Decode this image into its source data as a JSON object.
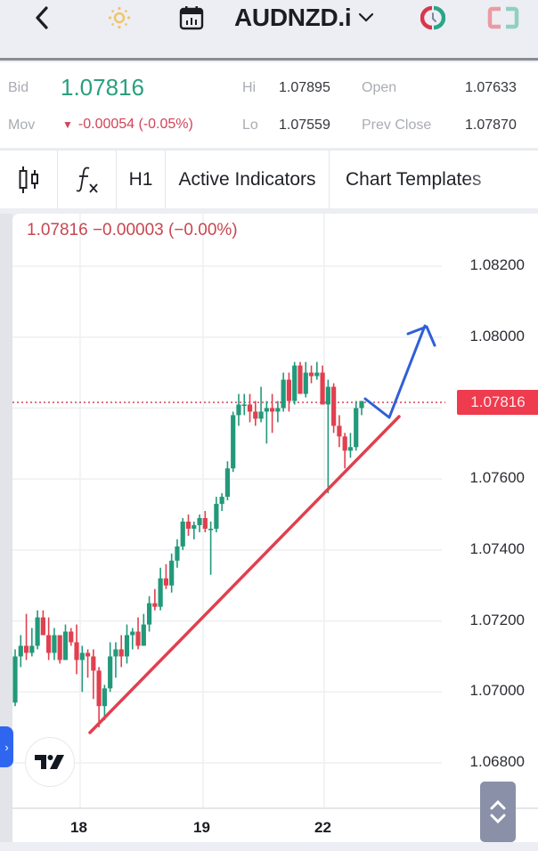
{
  "header": {
    "title": "AUDNZD.i",
    "icons": [
      "back-arrow-icon",
      "sun-theme-icon",
      "calendar-icon",
      "chevron-down-icon",
      "market-clock-icon",
      "expand-frame-icon"
    ]
  },
  "quote": {
    "bid_label": "Bid",
    "bid_value": "1.07816",
    "mov_label": "Mov",
    "mov_arrow": "▼",
    "mov_value": "-0.00054 (-0.05%)",
    "hi_label": "Hi",
    "hi_value": "1.07895",
    "lo_label": "Lo",
    "lo_value": "1.07559",
    "open_label": "Open",
    "open_value": "1.07633",
    "prev_close_label": "Prev Close",
    "prev_close_value": "1.07870",
    "colors": {
      "up": "#2a9f7d",
      "down": "#d2435a"
    }
  },
  "toolbar": {
    "chart_type_icon": "candlestick-icon",
    "indicator_icon": "fx-icon",
    "timeframe": "H1",
    "active_indicators": "Active Indicators",
    "chart_templates": "Chart Templates"
  },
  "chart": {
    "legend": "1.07816  −0.00003 (−0.00%)",
    "current_price": "1.07816",
    "y_labels": [
      "1.08200",
      "1.08000",
      "1.07600",
      "1.07400",
      "1.07200",
      "1.07000",
      "1.06800"
    ],
    "x_labels": [
      "18",
      "19",
      "22"
    ],
    "logo": "TV",
    "colors": {
      "up_candle": "#22997a",
      "down_candle": "#e0404f",
      "trendline": "#e0404f",
      "arrow": "#2f5fd8",
      "price_tag": "#ee3b4e",
      "grid": "#eeeff2"
    }
  },
  "chart_data": {
    "type": "candlestick",
    "title": "AUDNZD.i H1",
    "xlabel": "",
    "ylabel": "",
    "x_ticks": [
      "18",
      "19",
      "22"
    ],
    "ylim": [
      1.067,
      1.083
    ],
    "y_ticks": [
      1.068,
      1.07,
      1.072,
      1.074,
      1.076,
      1.078,
      1.08,
      1.082
    ],
    "current_price": 1.07816,
    "grid": true,
    "annotations": [
      {
        "type": "trendline",
        "color": "#e0404f",
        "from_price": 1.0688,
        "to_price": 1.0779,
        "note": "rising support line from day 18 low to day 22"
      },
      {
        "type": "arrow",
        "color": "#2f5fd8",
        "note": "projected dip to trendline then rise toward ~1.0803"
      }
    ],
    "ohlc_approx": [
      [
        1.0697,
        1.0712,
        1.0696,
        1.071
      ],
      [
        1.071,
        1.0716,
        1.0707,
        1.0713
      ],
      [
        1.0713,
        1.0722,
        1.0709,
        1.0711
      ],
      [
        1.0711,
        1.0718,
        1.071,
        1.0713
      ],
      [
        1.0713,
        1.0723,
        1.0712,
        1.0721
      ],
      [
        1.0721,
        1.0723,
        1.0717,
        1.0716
      ],
      [
        1.0716,
        1.0721,
        1.0709,
        1.0711
      ],
      [
        1.0711,
        1.0718,
        1.0709,
        1.0716
      ],
      [
        1.0716,
        1.0716,
        1.0708,
        1.0709
      ],
      [
        1.0709,
        1.0719,
        1.0709,
        1.0717
      ],
      [
        1.0717,
        1.0718,
        1.0713,
        1.0714
      ],
      [
        1.0714,
        1.0719,
        1.0705,
        1.0709
      ],
      [
        1.0709,
        1.0713,
        1.07,
        1.0711
      ],
      [
        1.0711,
        1.0712,
        1.0704,
        1.071
      ],
      [
        1.071,
        1.0712,
        1.0698,
        1.0706
      ],
      [
        1.0706,
        1.0707,
        1.069,
        1.0696
      ],
      [
        1.0696,
        1.0702,
        1.0692,
        1.0701
      ],
      [
        1.0701,
        1.0714,
        1.07,
        1.071
      ],
      [
        1.071,
        1.0714,
        1.0704,
        1.0712
      ],
      [
        1.0712,
        1.0716,
        1.0707,
        1.071
      ],
      [
        1.071,
        1.0719,
        1.0708,
        1.0716
      ],
      [
        1.0716,
        1.0718,
        1.0712,
        1.0717
      ],
      [
        1.0717,
        1.0721,
        1.0712,
        1.0713
      ],
      [
        1.0713,
        1.0722,
        1.0713,
        1.0719
      ],
      [
        1.0719,
        1.0727,
        1.0717,
        1.0725
      ],
      [
        1.0725,
        1.0729,
        1.0723,
        1.0724
      ],
      [
        1.0724,
        1.0735,
        1.0723,
        1.0732
      ],
      [
        1.0732,
        1.0736,
        1.0729,
        1.073
      ],
      [
        1.073,
        1.0739,
        1.0728,
        1.0737
      ],
      [
        1.0737,
        1.0743,
        1.0735,
        1.0741
      ],
      [
        1.0741,
        1.0749,
        1.074,
        1.0748
      ],
      [
        1.0748,
        1.075,
        1.0744,
        1.0746
      ],
      [
        1.0746,
        1.0748,
        1.0743,
        1.0747
      ],
      [
        1.0747,
        1.075,
        1.0745,
        1.0749
      ],
      [
        1.0749,
        1.0751,
        1.0745,
        1.0746
      ],
      [
        1.0746,
        1.0748,
        1.0733,
        1.0746
      ],
      [
        1.0746,
        1.0755,
        1.0745,
        1.0753
      ],
      [
        1.0753,
        1.0756,
        1.0751,
        1.0755
      ],
      [
        1.0755,
        1.0765,
        1.0754,
        1.0763
      ],
      [
        1.0763,
        1.0779,
        1.0762,
        1.0778
      ],
      [
        1.0778,
        1.0784,
        1.0775,
        1.0781
      ],
      [
        1.0781,
        1.0784,
        1.0778,
        1.0781
      ],
      [
        1.0781,
        1.0784,
        1.0776,
        1.0779
      ],
      [
        1.0779,
        1.0782,
        1.0775,
        1.0777
      ],
      [
        1.0777,
        1.0786,
        1.0776,
        1.0779
      ],
      [
        1.0779,
        1.0782,
        1.077,
        1.078
      ],
      [
        1.078,
        1.0784,
        1.0773,
        1.0779
      ],
      [
        1.0779,
        1.0782,
        1.0776,
        1.078
      ],
      [
        1.078,
        1.079,
        1.0779,
        1.0788
      ],
      [
        1.0788,
        1.079,
        1.0779,
        1.0782
      ],
      [
        1.0782,
        1.0793,
        1.0781,
        1.0792
      ],
      [
        1.0792,
        1.0793,
        1.0785,
        1.0784
      ],
      [
        1.0784,
        1.0793,
        1.0783,
        1.079
      ],
      [
        1.079,
        1.0792,
        1.0787,
        1.0789
      ],
      [
        1.0789,
        1.0793,
        1.0788,
        1.079
      ],
      [
        1.079,
        1.0792,
        1.0783,
        1.0781
      ],
      [
        1.0781,
        1.0788,
        1.0756,
        1.0786
      ],
      [
        1.0786,
        1.0787,
        1.0773,
        1.0775
      ],
      [
        1.0775,
        1.0778,
        1.0769,
        1.0772
      ],
      [
        1.0772,
        1.0773,
        1.0763,
        1.0768
      ],
      [
        1.0768,
        1.0773,
        1.0766,
        1.0769
      ],
      [
        1.0769,
        1.0782,
        1.0768,
        1.078
      ],
      [
        1.078,
        1.0782,
        1.0778,
        1.0782
      ]
    ]
  }
}
